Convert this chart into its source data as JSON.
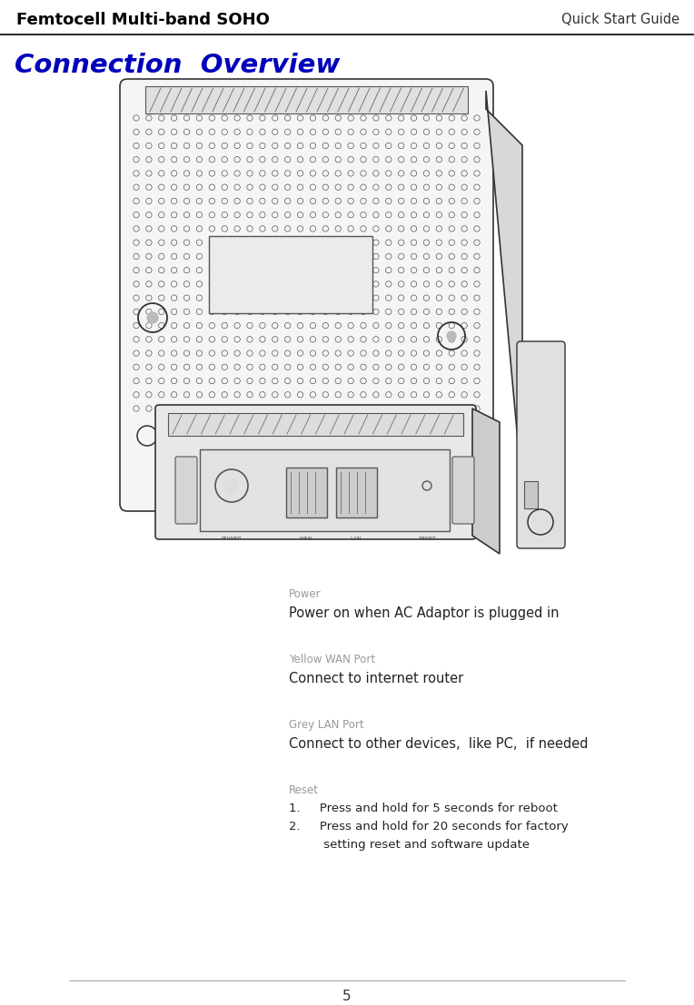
{
  "header_left": "Femtocell Multi-band SOHO",
  "header_right": "Quick Start Guide",
  "section_title": "Connection  Overview",
  "header_line_color": "#000000",
  "section_title_color": "#0000BB",
  "background_color": "#ffffff",
  "page_number": "5",
  "descriptions": [
    {
      "label": "Power",
      "label_color": "#999999",
      "body": "Power on when AC Adaptor is plugged in",
      "body_color": "#222222"
    },
    {
      "label": "Yellow WAN Port",
      "label_color": "#999999",
      "body": "Connect to internet router",
      "body_color": "#222222"
    },
    {
      "label": "Grey LAN Port",
      "label_color": "#999999",
      "body": "Connect to other devices,  like PC,  if needed",
      "body_color": "#222222"
    },
    {
      "label": "Reset",
      "label_color": "#999999",
      "body_lines": [
        "1.     Press and hold for 5 seconds for reboot",
        "2.     Press and hold for 20 seconds for factory",
        "         setting reset and software update"
      ],
      "body_color": "#222222"
    }
  ]
}
